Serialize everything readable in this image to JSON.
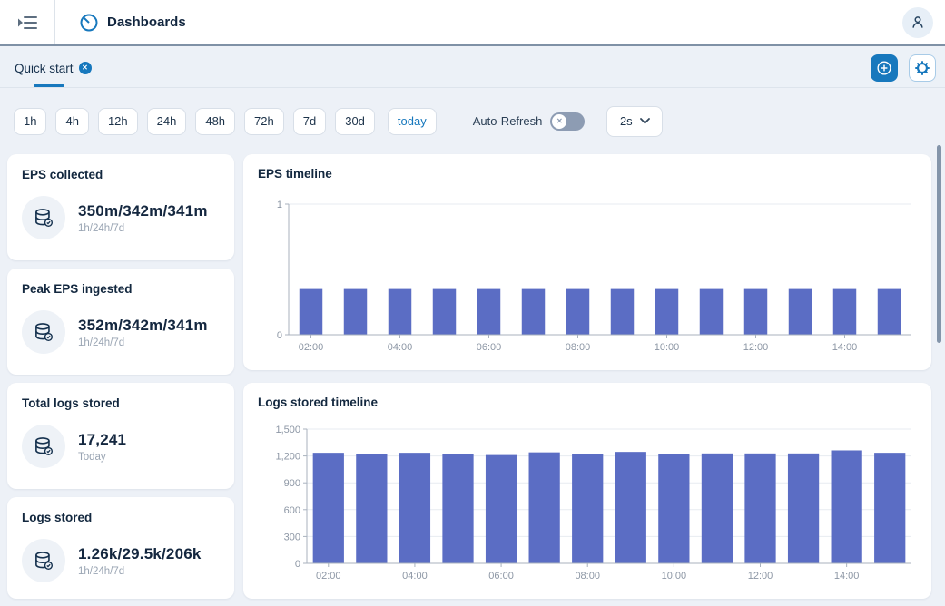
{
  "app": {
    "header": {
      "title": "Dashboards"
    },
    "tab": {
      "label": "Quick start"
    },
    "toolbar": {
      "time_ranges": [
        "1h",
        "4h",
        "12h",
        "24h",
        "48h",
        "72h",
        "7d",
        "30d",
        "today"
      ],
      "selected_range": "today",
      "auto_refresh_label": "Auto-Refresh",
      "auto_refresh_state": "off",
      "refresh_interval": "2s"
    },
    "stat_cards": [
      {
        "title": "EPS collected",
        "value": "350m/342m/341m",
        "subtitle": "1h/24h/7d",
        "icon": "database-icon"
      },
      {
        "title": "Peak EPS ingested",
        "value": "352m/342m/341m",
        "subtitle": "1h/24h/7d",
        "icon": "database-icon"
      },
      {
        "title": "Total logs stored",
        "value": "17,241",
        "subtitle": "Today",
        "icon": "database-icon"
      },
      {
        "title": "Logs stored",
        "value": "1.26k/29.5k/206k",
        "subtitle": "1h/24h/7d",
        "icon": "database-icon"
      }
    ]
  },
  "chart_data": [
    {
      "type": "bar",
      "title": "EPS timeline",
      "x": [
        "02:00",
        "03:00",
        "04:00",
        "05:00",
        "06:00",
        "07:00",
        "08:00",
        "09:00",
        "10:00",
        "11:00",
        "12:00",
        "13:00",
        "14:00",
        "15:00"
      ],
      "values": [
        0.35,
        0.35,
        0.35,
        0.35,
        0.35,
        0.35,
        0.35,
        0.35,
        0.35,
        0.35,
        0.35,
        0.35,
        0.35,
        0.35
      ],
      "xtick_every": 2,
      "ylim": [
        0,
        1
      ],
      "yticks": [
        0,
        1
      ],
      "ytick_labels": [
        "0",
        "1"
      ],
      "grid": true,
      "legend": "none",
      "color": "#5b6dc4",
      "xlabel": "",
      "ylabel": ""
    },
    {
      "type": "bar",
      "title": "Logs stored timeline",
      "x": [
        "02:00",
        "03:00",
        "04:00",
        "05:00",
        "06:00",
        "07:00",
        "08:00",
        "09:00",
        "10:00",
        "11:00",
        "12:00",
        "13:00",
        "14:00",
        "15:00"
      ],
      "values": [
        1235,
        1225,
        1235,
        1220,
        1210,
        1240,
        1220,
        1245,
        1218,
        1228,
        1228,
        1228,
        1262,
        1235
      ],
      "xtick_every": 2,
      "ylim": [
        0,
        1500
      ],
      "yticks": [
        0,
        300,
        600,
        900,
        1200,
        1500
      ],
      "ytick_labels": [
        "0",
        "300",
        "600",
        "900",
        "1,200",
        "1,500"
      ],
      "grid": true,
      "legend": "none",
      "color": "#5b6dc4",
      "xlabel": "",
      "ylabel": ""
    }
  ],
  "colors": {
    "accent": "#1778bd",
    "bar": "#5b6dc4",
    "navy": "#14273f",
    "page_bg": "#edf1f7"
  }
}
